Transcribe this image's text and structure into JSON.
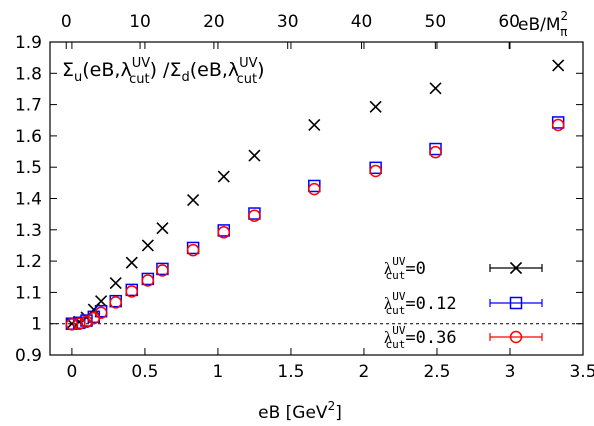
{
  "chart_data": {
    "type": "scatter",
    "title": "Σu(eB,λcut^UV) /Σd(eB,λcut^UV)",
    "title_parts": {
      "sigma_u": "Σ",
      "u_sub": "u",
      "open1": "(eB,λ",
      "uv1": "UV",
      "cut1": "cut",
      "close1": ")",
      "slash": " /Σ",
      "d_sub": "d",
      "open2": "(eB,λ",
      "uv2": "UV",
      "cut2": "cut",
      "close2": ")"
    },
    "xlabel": "eB [GeV",
    "xlabel_sup": "2",
    "xlabel_end": "]",
    "x2label": "eB/M",
    "x2label_sub": "π",
    "x2label_sup": "2",
    "xlim": [
      -0.15,
      3.5
    ],
    "ylim": [
      0.9,
      1.9
    ],
    "x2lim": [
      -2.2,
      70
    ],
    "xticks": [
      "0",
      "0.5",
      "1",
      "1.5",
      "2",
      "2.5",
      "3",
      "3.5"
    ],
    "yticks": [
      "0.9",
      "1",
      "1.1",
      "1.2",
      "1.3",
      "1.4",
      "1.5",
      "1.6",
      "1.7",
      "1.8",
      "1.9"
    ],
    "x2ticks": [
      "0",
      "10",
      "20",
      "30",
      "40",
      "50",
      "60"
    ],
    "reference_line": 1,
    "legend_position": "bottom-right",
    "series": [
      {
        "name": "λcut^UV=0",
        "name_lambda": "λ",
        "name_uv": "UV",
        "name_cut": "cut",
        "name_value": "=0",
        "marker": "x",
        "color": "#000000",
        "x": [
          0,
          0.05,
          0.1,
          0.15,
          0.2,
          0.3,
          0.41,
          0.52,
          0.62,
          0.83,
          1.04,
          1.25,
          1.66,
          2.08,
          2.49,
          3.33
        ],
        "y": [
          1.0,
          1.006,
          1.02,
          1.045,
          1.072,
          1.13,
          1.195,
          1.25,
          1.305,
          1.395,
          1.47,
          1.537,
          1.635,
          1.693,
          1.752,
          1.825
        ]
      },
      {
        "name": "λcut^UV=0.12",
        "name_lambda": "λ",
        "name_uv": "UV",
        "name_cut": "cut",
        "name_value": "=0.12",
        "marker": "square",
        "color": "#0000ff",
        "x": [
          0,
          0.05,
          0.1,
          0.15,
          0.2,
          0.3,
          0.41,
          0.52,
          0.62,
          0.83,
          1.04,
          1.25,
          1.66,
          2.08,
          2.49,
          3.33
        ],
        "y": [
          1.0,
          1.003,
          1.01,
          1.022,
          1.04,
          1.072,
          1.108,
          1.143,
          1.175,
          1.242,
          1.298,
          1.352,
          1.44,
          1.498,
          1.558,
          1.643
        ]
      },
      {
        "name": "λcut^UV=0.36",
        "name_lambda": "λ",
        "name_uv": "UV",
        "name_cut": "cut",
        "name_value": "=0.36",
        "marker": "circle",
        "color": "#ff0000",
        "x": [
          0,
          0.05,
          0.1,
          0.15,
          0.2,
          0.3,
          0.41,
          0.52,
          0.62,
          0.83,
          1.04,
          1.25,
          1.66,
          2.08,
          2.49,
          3.33
        ],
        "y": [
          0.998,
          1.0,
          1.006,
          1.018,
          1.035,
          1.068,
          1.103,
          1.138,
          1.17,
          1.235,
          1.292,
          1.345,
          1.43,
          1.488,
          1.548,
          1.635
        ]
      }
    ]
  }
}
